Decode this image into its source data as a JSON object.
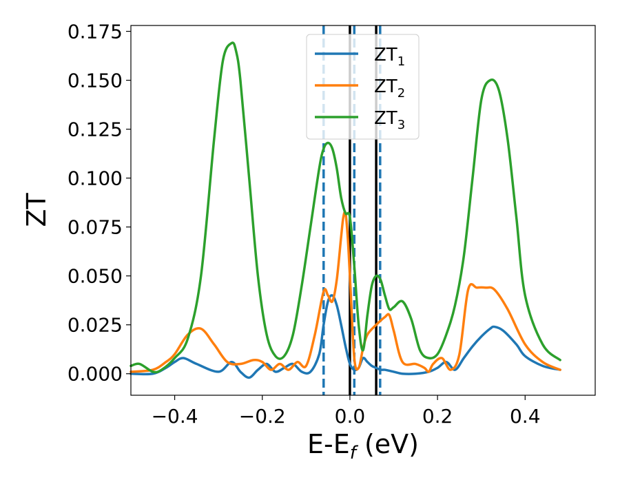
{
  "chart_data": {
    "type": "line",
    "xlabel": "E-E",
    "xlabel_sub": "f",
    "xlabel_unit": " (eV)",
    "ylabel": "ZT",
    "xlim": [
      -0.5,
      0.56
    ],
    "ylim": [
      -0.011,
      0.178
    ],
    "xticks": [
      -0.4,
      -0.2,
      0.0,
      0.2,
      0.4
    ],
    "xtick_labels": [
      "−0.4",
      "−0.2",
      "0.0",
      "0.2",
      "0.4"
    ],
    "yticks": [
      0.0,
      0.025,
      0.05,
      0.075,
      0.1,
      0.125,
      0.15,
      0.175
    ],
    "ytick_labels": [
      "0.000",
      "0.025",
      "0.050",
      "0.075",
      "0.100",
      "0.125",
      "0.150",
      "0.175"
    ],
    "grid": false,
    "legend_position": "top-center",
    "vertical_lines": [
      {
        "x": -0.06,
        "style": "dashed",
        "color": "#1f77b4"
      },
      {
        "x": 0.01,
        "style": "dashed",
        "color": "#1f77b4"
      },
      {
        "x": 0.069,
        "style": "dashed",
        "color": "#1f77b4"
      },
      {
        "x": 0.0,
        "style": "solid",
        "color": "#000000"
      },
      {
        "x": 0.06,
        "style": "solid",
        "color": "#000000"
      }
    ],
    "series": [
      {
        "name": "ZT",
        "sub": "1",
        "color": "#1f77b4",
        "x": [
          -0.5,
          -0.45,
          -0.42,
          -0.4,
          -0.38,
          -0.35,
          -0.3,
          -0.27,
          -0.25,
          -0.23,
          -0.21,
          -0.19,
          -0.17,
          -0.15,
          -0.13,
          -0.11,
          -0.09,
          -0.07,
          -0.06,
          -0.05,
          -0.04,
          -0.03,
          -0.02,
          -0.01,
          0.0,
          0.01,
          0.02,
          0.03,
          0.04,
          0.05,
          0.06,
          0.07,
          0.08,
          0.1,
          0.12,
          0.15,
          0.18,
          0.2,
          0.22,
          0.24,
          0.26,
          0.28,
          0.3,
          0.32,
          0.33,
          0.35,
          0.38,
          0.4,
          0.44,
          0.48
        ],
        "y": [
          0.0,
          0.0,
          0.003,
          0.006,
          0.008,
          0.005,
          0.001,
          0.006,
          0.001,
          -0.002,
          0.002,
          0.005,
          0.001,
          0.003,
          0.005,
          0.001,
          0.001,
          0.01,
          0.025,
          0.037,
          0.04,
          0.035,
          0.025,
          0.014,
          0.005,
          0.002,
          0.003,
          0.008,
          0.006,
          0.004,
          0.003,
          0.002,
          0.002,
          0.001,
          0.0,
          0.0,
          0.001,
          0.003,
          0.006,
          0.002,
          0.008,
          0.014,
          0.019,
          0.023,
          0.024,
          0.022,
          0.015,
          0.009,
          0.004,
          0.002
        ]
      },
      {
        "name": "ZT",
        "sub": "2",
        "color": "#ff7f0e",
        "x": [
          -0.5,
          -0.45,
          -0.42,
          -0.4,
          -0.37,
          -0.34,
          -0.31,
          -0.28,
          -0.25,
          -0.22,
          -0.2,
          -0.18,
          -0.16,
          -0.14,
          -0.12,
          -0.1,
          -0.08,
          -0.06,
          -0.05,
          -0.04,
          -0.03,
          -0.02,
          -0.015,
          -0.01,
          -0.005,
          0.0,
          0.01,
          0.02,
          0.03,
          0.04,
          0.06,
          0.08,
          0.09,
          0.1,
          0.12,
          0.15,
          0.17,
          0.18,
          0.19,
          0.21,
          0.23,
          0.25,
          0.27,
          0.29,
          0.31,
          0.33,
          0.36,
          0.4,
          0.44,
          0.48
        ],
        "y": [
          0.001,
          0.002,
          0.006,
          0.01,
          0.02,
          0.023,
          0.015,
          0.006,
          0.005,
          0.007,
          0.006,
          0.002,
          0.005,
          0.002,
          0.006,
          0.004,
          0.02,
          0.042,
          0.04,
          0.037,
          0.048,
          0.07,
          0.08,
          0.082,
          0.07,
          0.05,
          0.008,
          0.003,
          0.013,
          0.02,
          0.025,
          0.029,
          0.03,
          0.022,
          0.006,
          0.005,
          0.003,
          0.001,
          0.005,
          0.008,
          0.002,
          0.01,
          0.043,
          0.044,
          0.044,
          0.043,
          0.033,
          0.015,
          0.006,
          0.002
        ]
      },
      {
        "name": "ZT",
        "sub": "3",
        "color": "#2ca02c",
        "x": [
          -0.5,
          -0.48,
          -0.45,
          -0.43,
          -0.4,
          -0.37,
          -0.34,
          -0.31,
          -0.29,
          -0.27,
          -0.26,
          -0.25,
          -0.23,
          -0.21,
          -0.19,
          -0.17,
          -0.15,
          -0.13,
          -0.11,
          -0.09,
          -0.07,
          -0.06,
          -0.05,
          -0.04,
          -0.03,
          -0.02,
          -0.01,
          0.0,
          0.01,
          0.02,
          0.03,
          0.04,
          0.05,
          0.06,
          0.07,
          0.08,
          0.09,
          0.1,
          0.12,
          0.14,
          0.16,
          0.18,
          0.2,
          0.22,
          0.24,
          0.26,
          0.28,
          0.3,
          0.32,
          0.34,
          0.36,
          0.38,
          0.4,
          0.44,
          0.48
        ],
        "y": [
          0.004,
          0.005,
          0.001,
          0.002,
          0.008,
          0.018,
          0.05,
          0.12,
          0.16,
          0.169,
          0.165,
          0.15,
          0.1,
          0.05,
          0.02,
          0.009,
          0.009,
          0.02,
          0.045,
          0.075,
          0.105,
          0.115,
          0.118,
          0.115,
          0.105,
          0.09,
          0.082,
          0.08,
          0.055,
          0.025,
          0.012,
          0.03,
          0.045,
          0.05,
          0.048,
          0.04,
          0.033,
          0.034,
          0.037,
          0.028,
          0.012,
          0.008,
          0.01,
          0.02,
          0.035,
          0.06,
          0.1,
          0.14,
          0.15,
          0.145,
          0.12,
          0.08,
          0.04,
          0.015,
          0.007
        ]
      }
    ]
  }
}
